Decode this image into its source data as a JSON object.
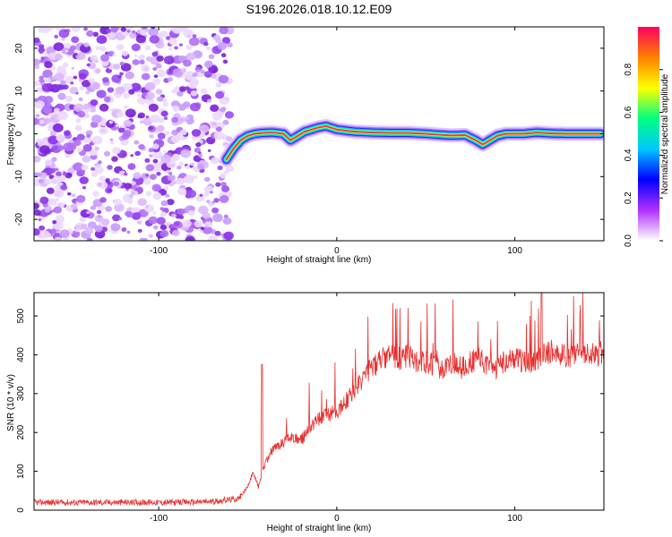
{
  "figure": {
    "title": "S196.2026.018.10.12.E09"
  },
  "chart_data": [
    {
      "type": "heatmap",
      "name": "spectrogram",
      "xlabel": "Height of straight line (km)",
      "ylabel": "Frequency (Hz)",
      "xlim": [
        -170,
        150
      ],
      "ylim": [
        -25,
        25
      ],
      "xticks": [
        -100,
        0,
        100
      ],
      "yticks": [
        -20,
        -10,
        0,
        10,
        20
      ],
      "noise_region_x": [
        -170,
        -60
      ],
      "ridge": {
        "x": [
          -62,
          -58,
          -54,
          -50,
          -46,
          -42,
          -36,
          -30,
          -26,
          -22,
          -18,
          -14,
          -10,
          -6,
          0,
          10,
          20,
          30,
          40,
          50,
          60,
          65,
          72,
          78,
          82,
          86,
          90,
          95,
          105,
          112,
          120,
          130,
          140,
          148
        ],
        "y": [
          -6,
          -3.5,
          -1.5,
          -0.5,
          0,
          0.2,
          0.3,
          0,
          -1.5,
          -0.5,
          0.5,
          1,
          1.5,
          1.8,
          1,
          0.5,
          0.3,
          0.2,
          0.2,
          0,
          -0.3,
          -0.4,
          -0.3,
          -1.5,
          -2.5,
          -1.5,
          -0.5,
          0,
          0,
          0.3,
          0.1,
          0,
          0,
          0
        ]
      }
    },
    {
      "type": "line",
      "name": "snr",
      "xlabel": "Height of straight line (km)",
      "ylabel": "SNR (10 * v/v)",
      "xlim": [
        -170,
        150
      ],
      "ylim": [
        0,
        560
      ],
      "xticks": [
        -100,
        0,
        100
      ],
      "yticks": [
        0,
        100,
        200,
        300,
        400,
        500
      ],
      "color": "#e8302f",
      "series": [
        {
          "name": "SNR",
          "x": [
            -170,
            -150,
            -130,
            -110,
            -90,
            -70,
            -55,
            -50,
            -47,
            -44,
            -40,
            -37,
            -35,
            -30,
            -25,
            -20,
            -15,
            -10,
            -5,
            0,
            5,
            10,
            15,
            20,
            25,
            30,
            35,
            40,
            45,
            50,
            55,
            60,
            65,
            70,
            75,
            80,
            85,
            90,
            95,
            100,
            105,
            110,
            115,
            120,
            125,
            130,
            135,
            140,
            145,
            150
          ],
          "values": [
            20,
            20,
            20,
            20,
            20,
            22,
            30,
            60,
            100,
            60,
            120,
            150,
            160,
            175,
            190,
            180,
            210,
            235,
            245,
            255,
            280,
            310,
            340,
            370,
            385,
            395,
            390,
            400,
            385,
            380,
            375,
            360,
            380,
            365,
            380,
            390,
            370,
            365,
            385,
            390,
            380,
            380,
            400,
            410,
            400,
            390,
            405,
            410,
            400,
            405
          ]
        }
      ],
      "peaks": [
        {
          "x": -42,
          "value": 375
        },
        {
          "x": 115,
          "value": 560
        }
      ]
    }
  ],
  "colorbar": {
    "label": "Normalized spectral amplitude",
    "range": [
      0,
      1
    ],
    "ticks": [
      "0.0",
      "0.2",
      "0.4",
      "0.6",
      "0.8"
    ],
    "stops": [
      "#ffffff",
      "#b030ff",
      "#0000ff",
      "#00c8ff",
      "#00ff80",
      "#ffff00",
      "#ff8000",
      "#ff0060"
    ]
  }
}
